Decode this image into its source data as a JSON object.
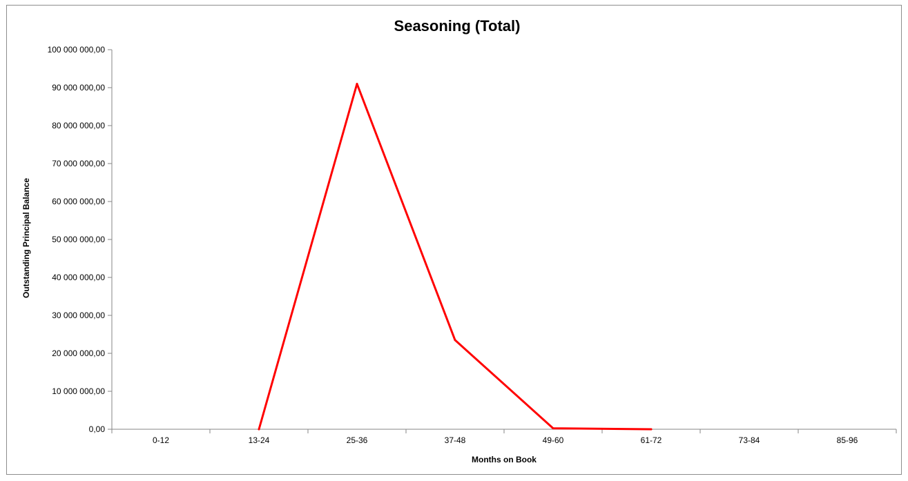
{
  "chart_data": {
    "type": "line",
    "title": "Seasoning (Total)",
    "xlabel": "Months on Book",
    "ylabel": "Outstanding Principal Balance",
    "categories": [
      "0-12",
      "13-24",
      "25-36",
      "37-48",
      "49-60",
      "61-72",
      "73-84",
      "85-96"
    ],
    "series": [
      {
        "color": "#ff0000",
        "values": [
          null,
          0,
          91000000,
          23500000,
          250000,
          0,
          null,
          null
        ]
      }
    ],
    "ylim": [
      0,
      100000000
    ],
    "yticks": [
      0,
      10000000,
      20000000,
      30000000,
      40000000,
      50000000,
      60000000,
      70000000,
      80000000,
      90000000,
      100000000
    ],
    "ytick_labels": [
      "0,00",
      "10 000 000,00",
      "20 000 000,00",
      "30 000 000,00",
      "40 000 000,00",
      "50 000 000,00",
      "60 000 000,00",
      "70 000 000,00",
      "80 000 000,00",
      "90 000 000,00",
      "100 000 000,00"
    ],
    "grid": false,
    "legend": "none"
  }
}
